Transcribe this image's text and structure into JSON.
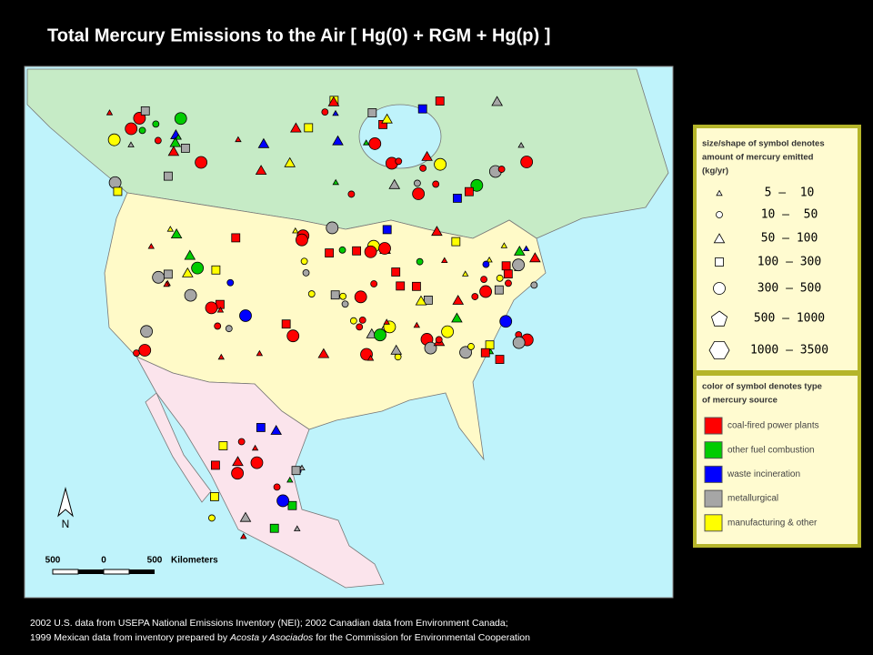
{
  "title": "Total Mercury Emissions to the Air [ Hg(0) + RGM + Hg(p) ]",
  "map": {
    "north_label": "N",
    "scale": {
      "labels": [
        "500",
        "0",
        "500"
      ],
      "unit": "Kilometers"
    }
  },
  "legend": {
    "size": {
      "title_lines": [
        "size/shape of symbol denotes",
        "amount of mercury emitted",
        "(kg/yr)"
      ],
      "ranges": [
        {
          "label": "5 –  10",
          "shape": "triangle-small"
        },
        {
          "label": "10 –  50",
          "shape": "circle-small"
        },
        {
          "label": "50 – 100",
          "shape": "triangle"
        },
        {
          "label": "100 – 300",
          "shape": "square"
        },
        {
          "label": "300 – 500",
          "shape": "circle"
        },
        {
          "label": "500 – 1000",
          "shape": "pentagon"
        },
        {
          "label": "1000 – 3500",
          "shape": "hexagon"
        }
      ]
    },
    "color": {
      "title_lines": [
        "color of symbol denotes type",
        "of mercury source"
      ],
      "items": [
        {
          "label": "coal-fired power plants",
          "color": "#ff0000"
        },
        {
          "label": "other fuel combustion",
          "color": "#00cc00"
        },
        {
          "label": "waste incineration",
          "color": "#0000ff"
        },
        {
          "label": "metallurgical",
          "color": "#a6a6a6"
        },
        {
          "label": "manufacturing & other",
          "color": "#ffff00"
        }
      ]
    }
  },
  "footer": {
    "line1": "2002 U.S. data from USEPA National Emissions Inventory (NEI); 2002 Canadian data from Environment Canada;",
    "line2_parts": [
      "1999 Mexican data from inventory prepared by ",
      "Acosta y Asociados",
      " for the Commission for Environmental Cooperation"
    ]
  }
}
